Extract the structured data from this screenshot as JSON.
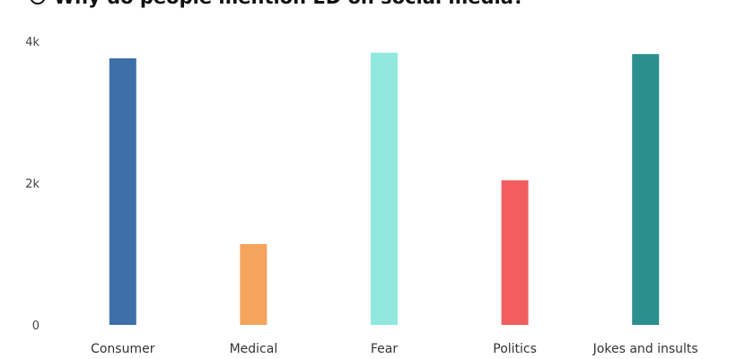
{
  "chart_data": {
    "type": "bar",
    "title": "Why do people mention ED on social media?",
    "categories": [
      "Consumer",
      "Medical",
      "Fear",
      "Politics",
      "Jokes and insults"
    ],
    "values": [
      3760,
      1140,
      3840,
      2040,
      3820
    ],
    "colors": [
      "#3d6fa8",
      "#f5a45d",
      "#90e8df",
      "#f25e5e",
      "#2a8f8d"
    ],
    "ylim": [
      0,
      4000
    ],
    "yticks": [
      0,
      {
        "value": 2000,
        "label": "2k"
      },
      {
        "value": 4000,
        "label": "4k"
      }
    ]
  }
}
